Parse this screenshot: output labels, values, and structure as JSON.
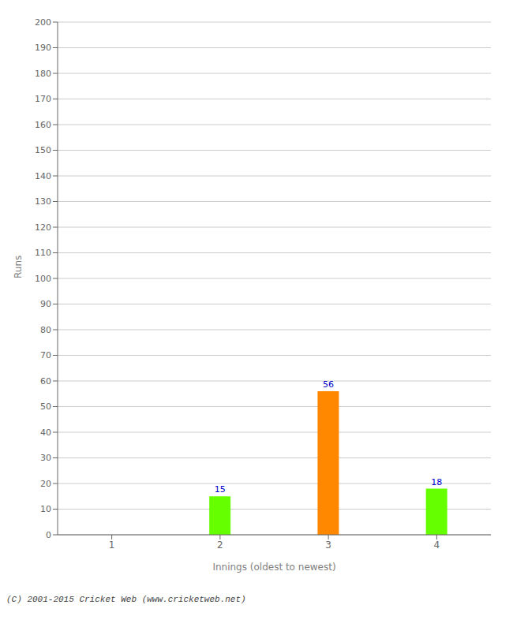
{
  "chart_data": {
    "type": "bar",
    "categories": [
      "1",
      "2",
      "3",
      "4"
    ],
    "values": [
      0,
      15,
      56,
      18
    ],
    "colors": [
      "#66ff00",
      "#66ff00",
      "#ff8800",
      "#66ff00"
    ],
    "xlabel": "Innings (oldest to newest)",
    "ylabel": "Runs",
    "ylim": [
      0,
      200
    ],
    "yticks": [
      0,
      10,
      20,
      30,
      40,
      50,
      60,
      70,
      80,
      90,
      100,
      110,
      120,
      130,
      140,
      150,
      160,
      170,
      180,
      190,
      200
    ],
    "grid": true,
    "data_labels": true,
    "annotations": [
      "(C) 2001-2015 Cricket Web (www.cricketweb.net)"
    ]
  }
}
